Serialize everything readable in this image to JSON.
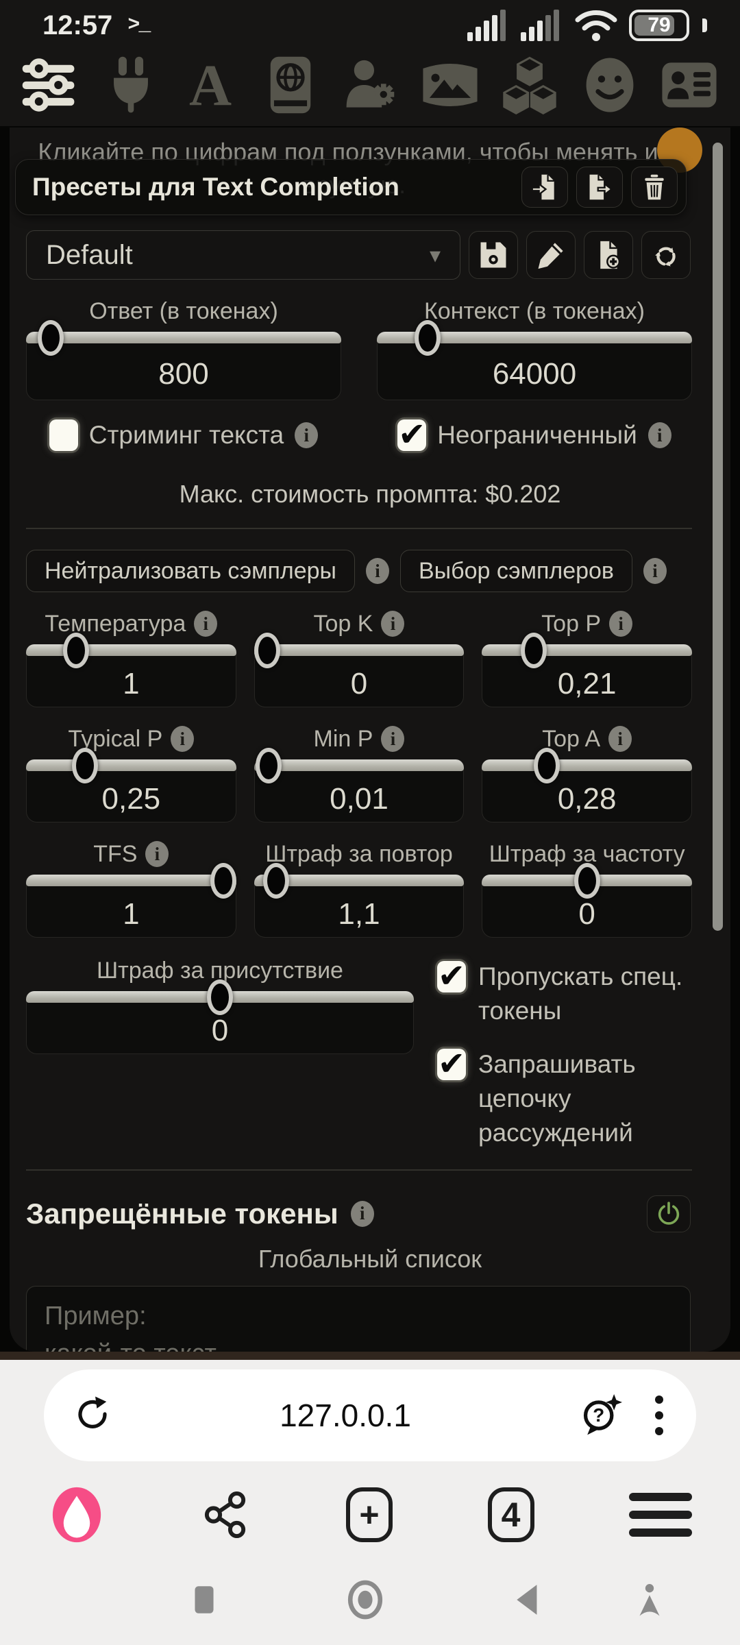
{
  "status": {
    "time": "12:57",
    "battery_percent": "79"
  },
  "glyphs": {
    "dropdown_chevron": "▾",
    "check": "✔",
    "plus": "+",
    "terminal": ">_"
  },
  "panel": {
    "hint_line1": "Кликайте по цифрам под ползунками, чтобы менять их",
    "hint_line2": "вручную.",
    "presets_title": "Пресеты для Text Completion",
    "preset_selected": "Default",
    "cost_note": "Макс. стоимость промпта: $0.202",
    "neutralize_button": "Нейтрализовать сэмплеры",
    "sampler_select_button": "Выбор сэмплеров",
    "sliders": [
      {
        "label": "Ответ (в токенах)",
        "value": "800",
        "pct": 4,
        "info": false
      },
      {
        "label": "Контекст (в токенах)",
        "value": "64000",
        "pct": 13,
        "info": false
      },
      {
        "label": "Температура",
        "value": "1",
        "pct": 20,
        "info": true
      },
      {
        "label": "Top K",
        "value": "0",
        "pct": 0,
        "info": true
      },
      {
        "label": "Top P",
        "value": "0,21",
        "pct": 21,
        "info": true
      },
      {
        "label": "Typical P",
        "value": "0,25",
        "pct": 25,
        "info": true
      },
      {
        "label": "Min P",
        "value": "0,01",
        "pct": 1,
        "info": true
      },
      {
        "label": "Top A",
        "value": "0,28",
        "pct": 28,
        "info": true
      },
      {
        "label": "TFS",
        "value": "1",
        "pct": 100,
        "info": true
      },
      {
        "label": "Штраф за повтор",
        "value": "1,1",
        "pct": 5,
        "info": false
      },
      {
        "label": "Штраф за частоту",
        "value": "0",
        "pct": 50,
        "info": false
      },
      {
        "label": "Штраф за присутствие",
        "value": "0",
        "pct": 50,
        "info": false
      }
    ],
    "checkboxes": {
      "streaming": {
        "label": "Стриминг текста",
        "checked": false
      },
      "unlimited": {
        "label": "Неограниченный",
        "checked": true
      },
      "skip_special": {
        "label": "Пропускать спец. токены",
        "checked": true
      },
      "request_reasoning": {
        "label": "Запрашивать цепочку рассуждений",
        "checked": true
      }
    },
    "banned_tokens": {
      "title": "Запрещённые токены",
      "list_label": "Глобальный список",
      "placeholder": "Пример:\nкакой-то текст",
      "enabled": true
    }
  },
  "browser": {
    "url": "127.0.0.1",
    "tab_count": "4"
  },
  "colors": {
    "accent_pink": "#f64d86",
    "power_green": "#7da756",
    "orange_dot": "#b5771f"
  }
}
